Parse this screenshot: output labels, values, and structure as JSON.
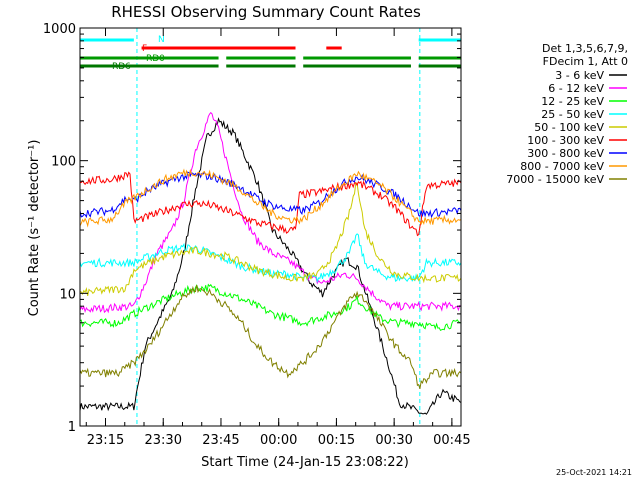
{
  "chart_data": {
    "type": "line",
    "title": "RHESSI Observing Summary Count Rates",
    "xlabel": "Start Time (24-Jan-15 23:08:22)",
    "ylabel": "Count Rate (s⁻¹ detector⁻¹)",
    "yscale": "log",
    "ylim": [
      1,
      1000
    ],
    "xlim_minutes": [
      0,
      99
    ],
    "x_tick_labels": [
      "23:15",
      "23:30",
      "23:45",
      "00:00",
      "00:15",
      "00:30",
      "00:45"
    ],
    "x_tick_minutes": [
      6.63,
      21.63,
      36.63,
      51.63,
      66.63,
      81.63,
      96.63
    ],
    "y_tick_labels": [
      "1",
      "10",
      "100",
      "1000"
    ],
    "y_tick_values": [
      1,
      10,
      100,
      1000
    ],
    "grid": false,
    "legend_position": "right",
    "legend_header": [
      "Det 1,3,5,6,7,9,",
      "FDecim 1, Att 0"
    ],
    "footer_date": "25-Oct-2021 14:21",
    "series": [
      {
        "name": "3 - 6 keV",
        "color": "#000000",
        "points": [
          [
            0,
            1.4
          ],
          [
            14,
            1.4
          ],
          [
            17,
            4
          ],
          [
            20,
            6
          ],
          [
            24,
            10
          ],
          [
            27,
            20
          ],
          [
            30,
            60
          ],
          [
            33,
            150
          ],
          [
            36,
            200
          ],
          [
            40,
            160
          ],
          [
            46,
            70
          ],
          [
            50,
            30
          ],
          [
            55,
            20
          ],
          [
            60,
            12
          ],
          [
            63,
            10
          ],
          [
            66,
            14
          ],
          [
            69,
            18
          ],
          [
            72,
            16
          ],
          [
            76,
            7
          ],
          [
            80,
            3
          ],
          [
            83,
            1.5
          ],
          [
            90,
            1.2
          ],
          [
            94,
            1.8
          ],
          [
            99,
            1.5
          ]
        ]
      },
      {
        "name": "6 - 12 keV",
        "color": "#ff00ff",
        "points": [
          [
            0,
            7.5
          ],
          [
            14,
            8
          ],
          [
            17,
            12
          ],
          [
            20,
            20
          ],
          [
            24,
            30
          ],
          [
            27,
            50
          ],
          [
            30,
            120
          ],
          [
            34,
            230
          ],
          [
            36,
            170
          ],
          [
            39,
            80
          ],
          [
            42,
            40
          ],
          [
            46,
            25
          ],
          [
            50,
            20
          ],
          [
            55,
            17
          ],
          [
            60,
            13
          ],
          [
            63,
            12
          ],
          [
            66,
            13
          ],
          [
            69,
            14
          ],
          [
            72,
            13
          ],
          [
            76,
            10
          ],
          [
            80,
            8
          ],
          [
            85,
            8
          ],
          [
            90,
            8
          ],
          [
            99,
            8
          ]
        ]
      },
      {
        "name": "12 - 25 keV",
        "color": "#00ff00",
        "points": [
          [
            0,
            6
          ],
          [
            10,
            6
          ],
          [
            14,
            7
          ],
          [
            18,
            8
          ],
          [
            22,
            9
          ],
          [
            26,
            10
          ],
          [
            30,
            11
          ],
          [
            34,
            11
          ],
          [
            38,
            10
          ],
          [
            42,
            9
          ],
          [
            46,
            8
          ],
          [
            50,
            7
          ],
          [
            54,
            6.5
          ],
          [
            58,
            6
          ],
          [
            62,
            6.5
          ],
          [
            66,
            7
          ],
          [
            70,
            8
          ],
          [
            72,
            9
          ],
          [
            74,
            8
          ],
          [
            78,
            6.5
          ],
          [
            82,
            6
          ],
          [
            88,
            6
          ],
          [
            92,
            5.5
          ],
          [
            99,
            6
          ]
        ]
      },
      {
        "name": "25 - 50 keV",
        "color": "#00ffff",
        "points": [
          [
            0,
            17
          ],
          [
            12,
            17
          ],
          [
            14,
            17
          ],
          [
            18,
            19
          ],
          [
            22,
            21
          ],
          [
            26,
            22
          ],
          [
            30,
            22
          ],
          [
            34,
            20
          ],
          [
            38,
            18
          ],
          [
            42,
            16
          ],
          [
            46,
            15
          ],
          [
            50,
            14
          ],
          [
            54,
            14
          ],
          [
            58,
            13
          ],
          [
            62,
            13
          ],
          [
            66,
            15
          ],
          [
            70,
            20
          ],
          [
            72,
            28
          ],
          [
            74,
            17
          ],
          [
            78,
            14
          ],
          [
            82,
            13
          ],
          [
            88,
            13
          ],
          [
            90,
            17
          ],
          [
            99,
            17
          ]
        ]
      },
      {
        "name": "50 - 100 keV",
        "color": "#cccc00",
        "points": [
          [
            0,
            10
          ],
          [
            12,
            11
          ],
          [
            14,
            15
          ],
          [
            18,
            17
          ],
          [
            22,
            19
          ],
          [
            26,
            20
          ],
          [
            30,
            21
          ],
          [
            34,
            20
          ],
          [
            38,
            19
          ],
          [
            42,
            17
          ],
          [
            46,
            15
          ],
          [
            50,
            14
          ],
          [
            54,
            13
          ],
          [
            58,
            13
          ],
          [
            62,
            14
          ],
          [
            66,
            20
          ],
          [
            70,
            40
          ],
          [
            72,
            70
          ],
          [
            74,
            30
          ],
          [
            78,
            18
          ],
          [
            82,
            14
          ],
          [
            88,
            13
          ],
          [
            92,
            13
          ],
          [
            99,
            13
          ]
        ]
      },
      {
        "name": "100 - 300 keV",
        "color": "#ff0000",
        "points": [
          [
            0,
            70
          ],
          [
            8,
            72
          ],
          [
            13,
            80
          ],
          [
            14,
            35
          ],
          [
            18,
            38
          ],
          [
            22,
            42
          ],
          [
            26,
            46
          ],
          [
            30,
            48
          ],
          [
            34,
            46
          ],
          [
            38,
            42
          ],
          [
            42,
            38
          ],
          [
            46,
            34
          ],
          [
            50,
            32
          ],
          [
            54,
            30
          ],
          [
            56,
            30
          ],
          [
            57,
            55
          ],
          [
            62,
            58
          ],
          [
            66,
            62
          ],
          [
            70,
            66
          ],
          [
            72,
            68
          ],
          [
            74,
            64
          ],
          [
            78,
            55
          ],
          [
            82,
            44
          ],
          [
            86,
            32
          ],
          [
            88,
            28
          ],
          [
            90,
            65
          ],
          [
            99,
            68
          ]
        ]
      },
      {
        "name": "300 - 800 keV",
        "color": "#0000ff",
        "points": [
          [
            0,
            40
          ],
          [
            8,
            42
          ],
          [
            12,
            52
          ],
          [
            14,
            50
          ],
          [
            18,
            60
          ],
          [
            22,
            68
          ],
          [
            26,
            75
          ],
          [
            30,
            78
          ],
          [
            34,
            76
          ],
          [
            38,
            70
          ],
          [
            42,
            62
          ],
          [
            46,
            52
          ],
          [
            50,
            46
          ],
          [
            54,
            43
          ],
          [
            58,
            42
          ],
          [
            62,
            48
          ],
          [
            66,
            60
          ],
          [
            70,
            72
          ],
          [
            72,
            75
          ],
          [
            74,
            72
          ],
          [
            78,
            64
          ],
          [
            82,
            55
          ],
          [
            86,
            45
          ],
          [
            88,
            40
          ],
          [
            90,
            40
          ],
          [
            99,
            42
          ]
        ]
      },
      {
        "name": "800 - 7000 keV",
        "color": "#ff9900",
        "points": [
          [
            0,
            34
          ],
          [
            8,
            36
          ],
          [
            12,
            48
          ],
          [
            14,
            52
          ],
          [
            18,
            62
          ],
          [
            22,
            72
          ],
          [
            26,
            80
          ],
          [
            30,
            82
          ],
          [
            34,
            78
          ],
          [
            38,
            70
          ],
          [
            42,
            60
          ],
          [
            46,
            48
          ],
          [
            50,
            40
          ],
          [
            54,
            36
          ],
          [
            58,
            36
          ],
          [
            62,
            45
          ],
          [
            66,
            58
          ],
          [
            70,
            72
          ],
          [
            72,
            80
          ],
          [
            74,
            75
          ],
          [
            78,
            65
          ],
          [
            82,
            52
          ],
          [
            86,
            40
          ],
          [
            88,
            35
          ],
          [
            90,
            35
          ],
          [
            99,
            36
          ]
        ]
      },
      {
        "name": "7000 - 15000 keV",
        "color": "#808000",
        "points": [
          [
            0,
            2.5
          ],
          [
            10,
            2.5
          ],
          [
            14,
            3
          ],
          [
            18,
            4
          ],
          [
            22,
            6
          ],
          [
            26,
            9
          ],
          [
            30,
            11
          ],
          [
            34,
            10
          ],
          [
            38,
            8
          ],
          [
            42,
            6
          ],
          [
            46,
            4
          ],
          [
            50,
            3
          ],
          [
            54,
            2.5
          ],
          [
            58,
            3
          ],
          [
            62,
            4
          ],
          [
            66,
            6
          ],
          [
            70,
            9
          ],
          [
            72,
            10
          ],
          [
            74,
            9
          ],
          [
            78,
            6
          ],
          [
            82,
            4
          ],
          [
            86,
            3
          ],
          [
            88,
            2
          ],
          [
            92,
            2.5
          ],
          [
            99,
            2.5
          ]
        ]
      }
    ],
    "flag_bars": [
      {
        "name": "N",
        "color": "#00ffff",
        "segments": [
          [
            0,
            14
          ],
          [
            88,
            99
          ]
        ]
      },
      {
        "name": "F",
        "color": "#ff0000",
        "segments": [
          [
            16,
            56
          ],
          [
            64,
            68
          ]
        ]
      },
      {
        "name": "RD0",
        "color": "#009900",
        "segments": [
          [
            0,
            36
          ],
          [
            38,
            56
          ],
          [
            58,
            86
          ],
          [
            88,
            99
          ]
        ]
      },
      {
        "name": "RD6",
        "color": "#007700",
        "segments": [
          [
            0,
            36
          ],
          [
            38,
            56
          ],
          [
            58,
            86
          ],
          [
            88,
            99
          ]
        ]
      }
    ],
    "vertical_markers_minutes": [
      14.8,
      88.3
    ]
  }
}
